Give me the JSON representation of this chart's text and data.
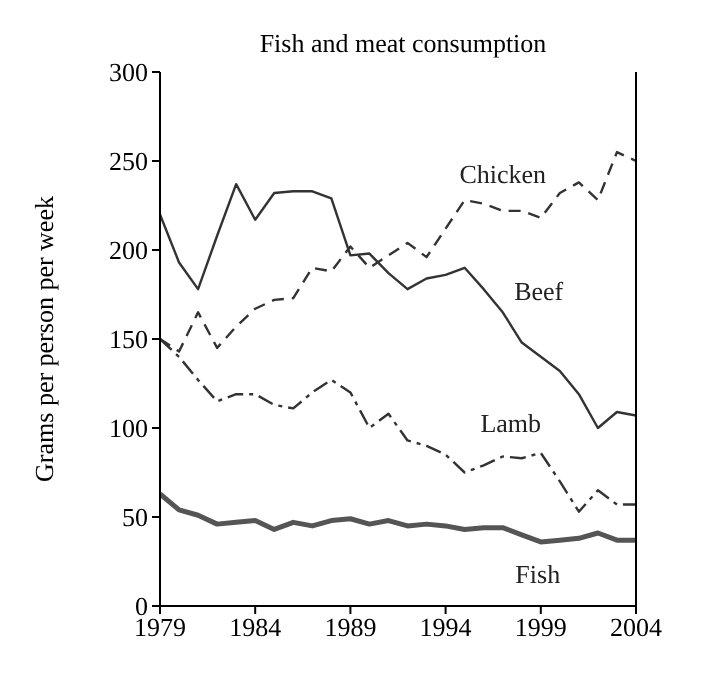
{
  "chart_data": {
    "type": "line",
    "title": "Fish and meat consumption",
    "ylabel": "Grams per person per week",
    "x": [
      1979,
      1980,
      1981,
      1982,
      1983,
      1984,
      1985,
      1986,
      1987,
      1988,
      1989,
      1990,
      1991,
      1992,
      1993,
      1994,
      1995,
      1996,
      1997,
      1998,
      1999,
      2000,
      2001,
      2002,
      2003,
      2004
    ],
    "xlim": [
      1979,
      2004
    ],
    "xticks": [
      1979,
      1984,
      1989,
      1994,
      1999,
      2004
    ],
    "ylim": [
      0,
      300
    ],
    "yticks": [
      0,
      50,
      100,
      150,
      200,
      250,
      300
    ],
    "grid": false,
    "legend": false,
    "marker": "none",
    "series": [
      {
        "name": "Chicken",
        "color": "#333333",
        "line_style": "dashed",
        "values": [
          150,
          143,
          165,
          145,
          157,
          167,
          172,
          173,
          190,
          188,
          202,
          190,
          197,
          204,
          196,
          212,
          228,
          226,
          222,
          222,
          218,
          232,
          238,
          228,
          255,
          250
        ]
      },
      {
        "name": "Beef",
        "color": "#333333",
        "line_style": "solid",
        "values": [
          220,
          193,
          178,
          208,
          237,
          217,
          232,
          233,
          233,
          229,
          197,
          198,
          187,
          178,
          184,
          186,
          190,
          178,
          165,
          148,
          140,
          132,
          119,
          100,
          109,
          107
        ]
      },
      {
        "name": "Lamb",
        "color": "#333333",
        "line_style": "dashdot",
        "values": [
          150,
          140,
          127,
          115,
          119,
          119,
          113,
          111,
          120,
          127,
          120,
          100,
          108,
          93,
          90,
          85,
          75,
          79,
          84,
          83,
          86,
          70,
          53,
          65,
          57,
          57
        ]
      },
      {
        "name": "Fish",
        "color": "#555555",
        "line_style": "solid",
        "values": [
          63,
          54,
          51,
          46,
          47,
          48,
          43,
          47,
          45,
          48,
          49,
          46,
          48,
          45,
          46,
          45,
          43,
          44,
          44,
          40,
          36,
          37,
          38,
          41,
          37,
          37
        ]
      }
    ]
  }
}
